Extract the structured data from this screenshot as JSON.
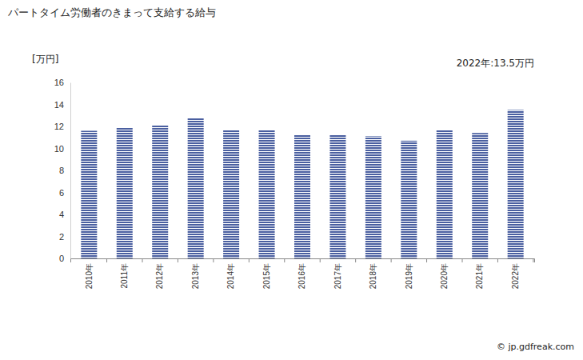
{
  "chart_data": {
    "type": "bar",
    "title": "パートタイム労働者のきまって支給する給与",
    "y_label": "[万円]",
    "annotation": "2022年:13.5万円",
    "source": "© jp.gdfreak.com",
    "categories": [
      "2010年",
      "2011年",
      "2012年",
      "2013年",
      "2014年",
      "2015年",
      "2016年",
      "2017年",
      "2018年",
      "2019年",
      "2020年",
      "2021年",
      "2022年"
    ],
    "values": [
      11.6,
      11.9,
      12.1,
      12.8,
      11.7,
      11.7,
      11.2,
      11.2,
      11.1,
      10.7,
      11.7,
      11.4,
      13.5
    ],
    "color": "#4a5fa0",
    "ylim": [
      0,
      16
    ],
    "yticks": [
      0,
      2,
      4,
      6,
      8,
      10,
      12,
      14,
      16
    ],
    "grid": false
  }
}
